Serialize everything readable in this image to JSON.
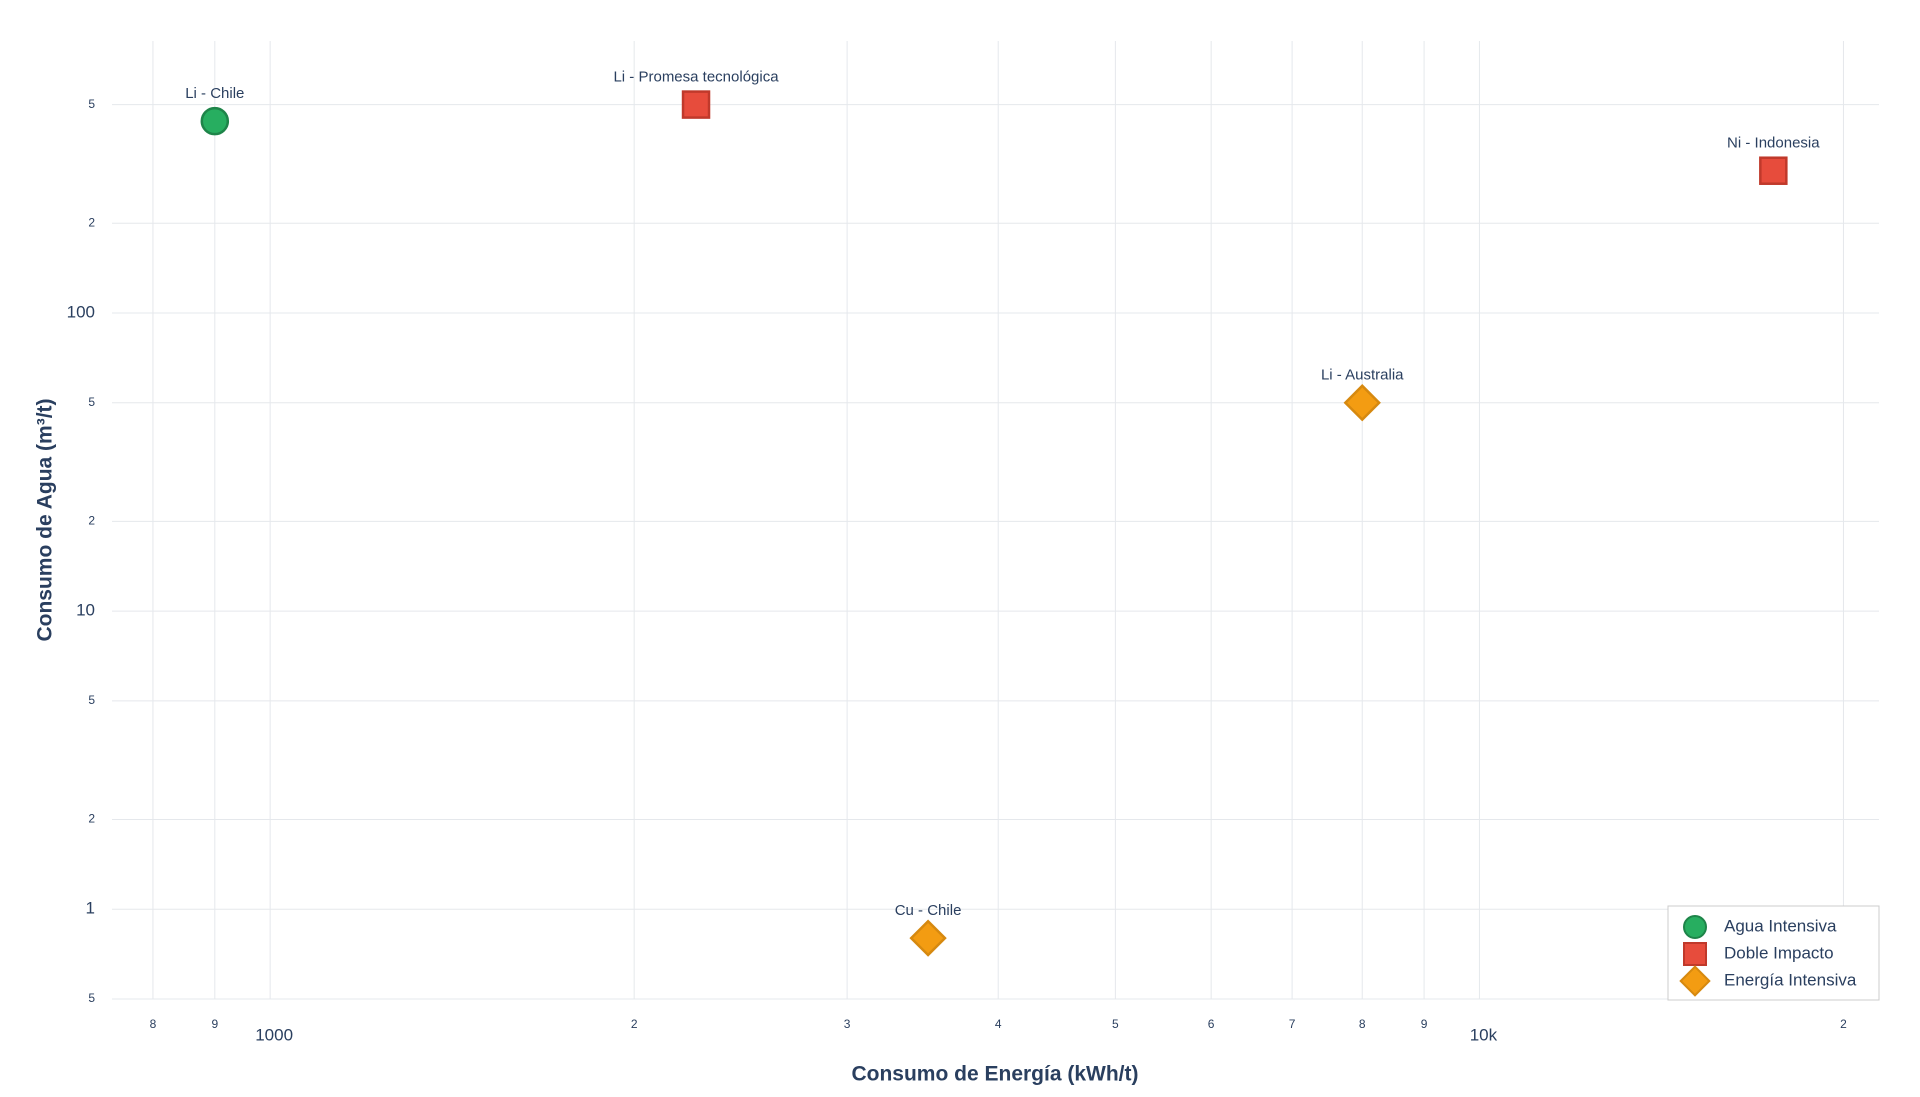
{
  "chart_data": {
    "type": "scatter",
    "x_label": "Consumo de Energía (kWh/t)",
    "y_label": "Consumo de Agua (m³/t)",
    "xscale": "log",
    "yscale": "log",
    "grid": true,
    "legend_position": "bottom-right",
    "xlim": [
      740,
      21400
    ],
    "ylim": [
      0.5,
      817
    ],
    "xticks": [
      {
        "value": 800,
        "label": "8"
      },
      {
        "value": 900,
        "label": "9"
      },
      1000,
      {
        "value": 2000,
        "label": "2"
      },
      {
        "value": 3000,
        "label": "3"
      },
      {
        "value": 4000,
        "label": "4"
      },
      {
        "value": 5000,
        "label": "5"
      },
      {
        "value": 6000,
        "label": "6"
      },
      {
        "value": 7000,
        "label": "7"
      },
      {
        "value": 8000,
        "label": "8"
      },
      {
        "value": 9000,
        "label": "9"
      },
      {
        "value": 10000,
        "label": "10k"
      },
      {
        "value": 20000,
        "label": "2"
      }
    ],
    "yticks": [
      {
        "value": 0.5,
        "label": "5"
      },
      1,
      {
        "value": 2,
        "label": "2"
      },
      {
        "value": 5,
        "label": "5"
      },
      10,
      {
        "value": 20,
        "label": "2"
      },
      {
        "value": 50,
        "label": "5"
      },
      100,
      {
        "value": 200,
        "label": "2"
      },
      {
        "value": 500,
        "label": "5"
      }
    ],
    "series": [
      {
        "name": "Agua Intensiva",
        "color": "#27ae60",
        "border": "#1e8449",
        "symbol": "circle",
        "x": [
          900
        ],
        "y": [
          440
        ],
        "labels": [
          "Li - Chile"
        ]
      },
      {
        "name": "Doble Impacto",
        "color": "#e74c3c",
        "border": "#c0392b",
        "symbol": "square",
        "x": [
          2250,
          17500
        ],
        "y": [
          500,
          300
        ],
        "labels": [
          "Li - Promesa tecnológica",
          "Ni - Indonesia"
        ]
      },
      {
        "name": "Energía Intensiva",
        "color": "#f39c12",
        "border": "#d68910",
        "symbol": "diamond",
        "x": [
          8000,
          3500
        ],
        "y": [
          50,
          0.8
        ],
        "labels": [
          "Li - Australia",
          "Cu - Chile"
        ]
      }
    ]
  }
}
